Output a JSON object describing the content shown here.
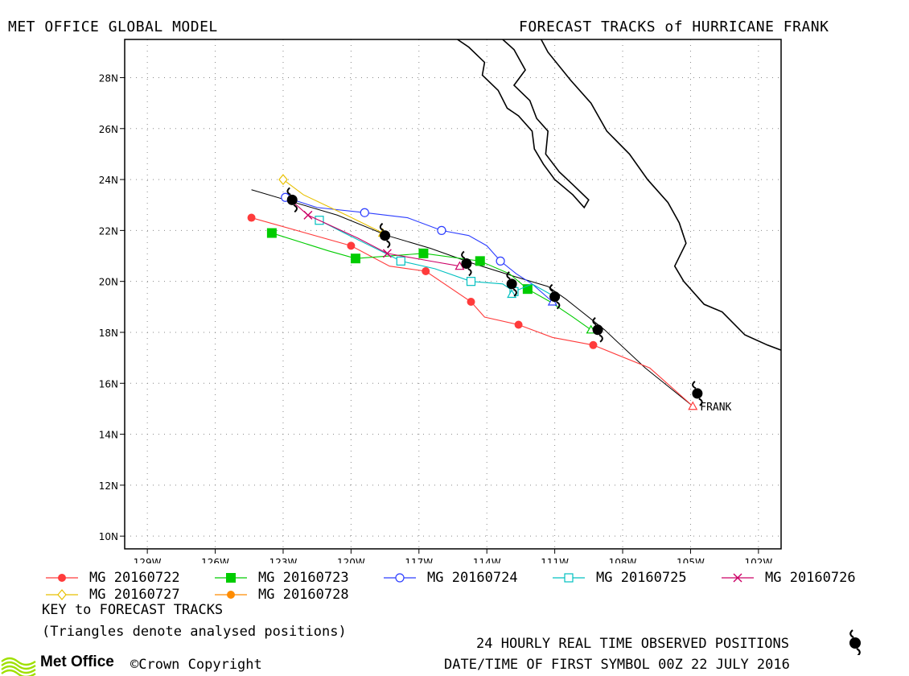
{
  "header": {
    "left_title": "MET OFFICE GLOBAL MODEL",
    "right_title": "FORECAST TRACKS of HURRICANE FRANK"
  },
  "chart_data": {
    "type": "line",
    "title": "FORECAST TRACKS of HURRICANE FRANK",
    "xlim": [
      -130,
      -101
    ],
    "ylim": [
      9.5,
      29.5
    ],
    "x_ticks": [
      -129,
      -126,
      -123,
      -120,
      -117,
      -114,
      -111,
      -108,
      -105,
      -102
    ],
    "x_tick_labels": [
      "129W",
      "126W",
      "123W",
      "120W",
      "117W",
      "114W",
      "111W",
      "108W",
      "105W",
      "102W"
    ],
    "y_ticks": [
      10,
      12,
      14,
      16,
      18,
      20,
      22,
      24,
      26,
      28
    ],
    "y_tick_labels": [
      "10N",
      "12N",
      "14N",
      "16N",
      "18N",
      "20N",
      "22N",
      "24N",
      "26N",
      "28N"
    ],
    "grid": true,
    "storm_label": "FRANK",
    "observed": {
      "track": [
        [
          -104.9,
          15.1
        ],
        [
          -107,
          16.6
        ],
        [
          -108.8,
          18.1
        ],
        [
          -110.5,
          19.3
        ],
        [
          -111.3,
          19.8
        ],
        [
          -112.8,
          20.2
        ],
        [
          -114.6,
          20.7
        ],
        [
          -116.5,
          21.3
        ],
        [
          -118.4,
          21.8
        ],
        [
          -120.6,
          22.6
        ],
        [
          -122.5,
          23.1
        ],
        [
          -124.4,
          23.6
        ]
      ],
      "symbols": [
        [
          -104.7,
          15.6
        ],
        [
          -109.1,
          18.1
        ],
        [
          -111,
          19.4
        ],
        [
          -112.9,
          19.9
        ],
        [
          -114.9,
          20.7
        ],
        [
          -118.5,
          21.8
        ],
        [
          -122.6,
          23.2
        ]
      ]
    },
    "series": [
      {
        "name": "MG 20160722",
        "color": "#ff3b3b",
        "marker": "filled-circle",
        "points": [
          [
            -104.9,
            15.1
          ],
          [
            -106.8,
            16.6
          ],
          [
            -109.3,
            17.5
          ],
          [
            -111.1,
            17.8
          ],
          [
            -112.6,
            18.3
          ],
          [
            -114.1,
            18.6
          ],
          [
            -114.7,
            19.2
          ],
          [
            -116.7,
            20.4
          ],
          [
            -118.3,
            20.6
          ],
          [
            -120,
            21.4
          ],
          [
            -124.4,
            22.5
          ]
        ],
        "marker_points": [
          [
            -109.3,
            17.5
          ],
          [
            -112.6,
            18.3
          ],
          [
            -114.7,
            19.2
          ],
          [
            -116.7,
            20.4
          ],
          [
            -120,
            21.4
          ],
          [
            -124.4,
            22.5
          ]
        ]
      },
      {
        "name": "MG 20160723",
        "color": "#00cc00",
        "marker": "filled-square",
        "points": [
          [
            -109.4,
            18.1
          ],
          [
            -110.2,
            18.6
          ],
          [
            -111.2,
            19.2
          ],
          [
            -112.2,
            19.7
          ],
          [
            -113,
            20.3
          ],
          [
            -114.3,
            20.8
          ],
          [
            -116.8,
            21.1
          ],
          [
            -119.8,
            20.9
          ],
          [
            -121,
            21.2
          ],
          [
            -123.5,
            21.9
          ]
        ],
        "marker_points": [
          [
            -112.2,
            19.7
          ],
          [
            -114.3,
            20.8
          ],
          [
            -116.8,
            21.1
          ],
          [
            -119.8,
            20.9
          ],
          [
            -123.5,
            21.9
          ]
        ]
      },
      {
        "name": "MG 20160724",
        "color": "#2c3dff",
        "marker": "open-circle",
        "points": [
          [
            -111.1,
            19.2
          ],
          [
            -112,
            19.9
          ],
          [
            -112.7,
            20.3
          ],
          [
            -113.4,
            20.8
          ],
          [
            -114,
            21.4
          ],
          [
            -114.8,
            21.8
          ],
          [
            -116,
            22
          ],
          [
            -117.5,
            22.5
          ],
          [
            -119.4,
            22.7
          ],
          [
            -121.5,
            22.9
          ],
          [
            -122.9,
            23.3
          ]
        ],
        "marker_points": [
          [
            -113.4,
            20.8
          ],
          [
            -116,
            22
          ],
          [
            -119.4,
            22.7
          ],
          [
            -122.9,
            23.3
          ]
        ]
      },
      {
        "name": "MG 20160725",
        "color": "#00c0c0",
        "marker": "open-square",
        "points": [
          [
            -111,
            19.4
          ],
          [
            -112,
            19.9
          ],
          [
            -112.8,
            19.6
          ],
          [
            -113.3,
            19.9
          ],
          [
            -114.7,
            20
          ],
          [
            -116.3,
            20.5
          ],
          [
            -117.8,
            20.8
          ],
          [
            -118.7,
            21.2
          ],
          [
            -120.3,
            21.9
          ],
          [
            -121.4,
            22.4
          ]
        ],
        "marker_points": [
          [
            -112.8,
            19.6
          ],
          [
            -114.7,
            20
          ],
          [
            -117.8,
            20.8
          ],
          [
            -121.4,
            22.4
          ]
        ]
      },
      {
        "name": "MG 20160726",
        "color": "#cc0066",
        "marker": "cross",
        "points": [
          [
            -115.2,
            20.6
          ],
          [
            -116.5,
            20.8
          ],
          [
            -118.4,
            21.1
          ],
          [
            -119.7,
            21.7
          ],
          [
            -121.9,
            22.6
          ],
          [
            -122.8,
            23.3
          ]
        ],
        "marker_points": [
          [
            -118.4,
            21.1
          ],
          [
            -121.9,
            22.6
          ]
        ]
      },
      {
        "name": "MG 20160727",
        "color": "#e8c000",
        "marker": "open-diamond",
        "points": [
          [
            -118.6,
            21.9
          ],
          [
            -120.2,
            22.6
          ],
          [
            -122.1,
            23.4
          ],
          [
            -123,
            24
          ]
        ],
        "marker_points": [
          [
            -123,
            24
          ]
        ]
      },
      {
        "name": "MG 20160728",
        "color": "#ff8c00",
        "marker": "filled-circle",
        "points": [],
        "marker_points": []
      }
    ],
    "analysed_triangles": [
      {
        "series": "MG 20160722",
        "point": [
          -104.9,
          15.1
        ]
      },
      {
        "series": "MG 20160723",
        "point": [
          -109.4,
          18.1
        ]
      },
      {
        "series": "MG 20160724",
        "point": [
          -111.1,
          19.2
        ]
      },
      {
        "series": "MG 20160725",
        "point": [
          -112.9,
          19.5
        ]
      },
      {
        "series": "MG 20160726",
        "point": [
          -115.2,
          20.6
        ]
      },
      {
        "series": "MG 20160727",
        "point": [
          -118.6,
          21.9
        ]
      }
    ],
    "coastline": [
      [
        [
          -113.3,
          29.5
        ],
        [
          -112.8,
          29.1
        ],
        [
          -112.3,
          28.3
        ],
        [
          -112.8,
          27.7
        ],
        [
          -112.1,
          27.1
        ],
        [
          -111.8,
          26.4
        ],
        [
          -111.3,
          25.9
        ],
        [
          -111.4,
          25
        ],
        [
          -110.8,
          24.3
        ],
        [
          -110.2,
          23.8
        ],
        [
          -109.5,
          23.2
        ],
        [
          -109.7,
          22.9
        ],
        [
          -110.2,
          23.4
        ],
        [
          -111,
          24
        ],
        [
          -111.5,
          24.6
        ],
        [
          -111.9,
          25.2
        ],
        [
          -112,
          25.9
        ],
        [
          -112.6,
          26.5
        ],
        [
          -113.1,
          26.8
        ],
        [
          -113.5,
          27.5
        ],
        [
          -114.2,
          28.1
        ],
        [
          -114.1,
          28.6
        ],
        [
          -114.8,
          29.2
        ],
        [
          -115.3,
          29.5
        ]
      ],
      [
        [
          -111.6,
          29.5
        ],
        [
          -111.3,
          29
        ],
        [
          -110.3,
          27.9
        ],
        [
          -109.4,
          27
        ],
        [
          -108.7,
          25.9
        ],
        [
          -107.7,
          25
        ],
        [
          -106.9,
          24
        ],
        [
          -106,
          23.1
        ],
        [
          -105.5,
          22.3
        ],
        [
          -105.2,
          21.5
        ],
        [
          -105.7,
          20.6
        ],
        [
          -105.3,
          20
        ],
        [
          -104.4,
          19.1
        ],
        [
          -103.6,
          18.8
        ],
        [
          -102.6,
          17.9
        ],
        [
          -101.6,
          17.5
        ],
        [
          -101,
          17.3
        ]
      ]
    ]
  },
  "legend": [
    {
      "label": "MG 20160722",
      "color": "#ff3b3b",
      "marker": "filled-circle"
    },
    {
      "label": "MG 20160723",
      "color": "#00cc00",
      "marker": "filled-square"
    },
    {
      "label": "MG 20160724",
      "color": "#2c3dff",
      "marker": "open-circle"
    },
    {
      "label": "MG 20160725",
      "color": "#00c0c0",
      "marker": "open-square"
    },
    {
      "label": "MG 20160726",
      "color": "#cc0066",
      "marker": "cross"
    },
    {
      "label": "MG 20160727",
      "color": "#e8c000",
      "marker": "open-diamond"
    },
    {
      "label": "MG 20160728",
      "color": "#ff8c00",
      "marker": "filled-circle"
    }
  ],
  "key": {
    "title": "KEY to FORECAST TRACKS",
    "note": "(Triangles denote analysed positions)"
  },
  "footer": {
    "observed_label": "24 HOURLY REAL TIME OBSERVED POSITIONS",
    "datetime_label": "DATE/TIME OF FIRST SYMBOL 00Z 22 JULY 2016",
    "brand": "Met Office",
    "copyright": "©Crown Copyright",
    "brand_color": "#9fe000"
  }
}
